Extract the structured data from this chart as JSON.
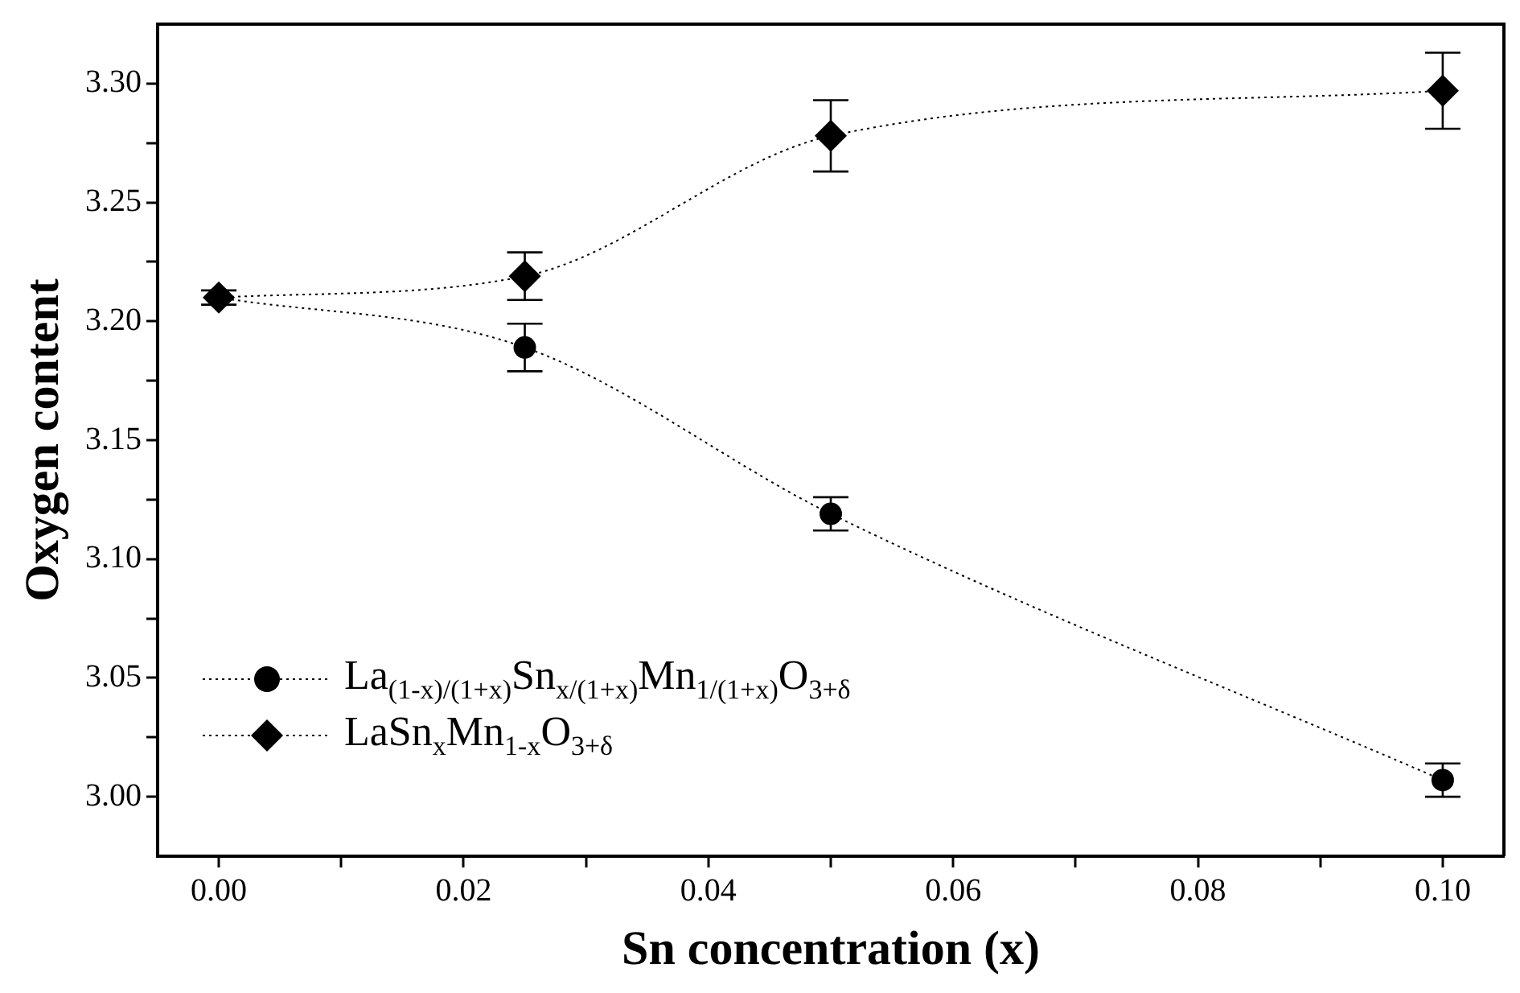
{
  "chart_data": {
    "type": "line",
    "xlabel": "Sn concentration (x)",
    "ylabel": "Oxygen content",
    "xlim": [
      -0.005,
      0.105
    ],
    "ylim": [
      2.975,
      3.325
    ],
    "xticks": [
      {
        "value": 0,
        "label": "0.00"
      },
      {
        "value": 0.01,
        "label": null
      },
      {
        "value": 0.02,
        "label": "0.02"
      },
      {
        "value": 0.03,
        "label": null
      },
      {
        "value": 0.04,
        "label": "0.04"
      },
      {
        "value": 0.05,
        "label": null
      },
      {
        "value": 0.06,
        "label": "0.06"
      },
      {
        "value": 0.07,
        "label": null
      },
      {
        "value": 0.08,
        "label": "0.08"
      },
      {
        "value": 0.09,
        "label": null
      },
      {
        "value": 0.1,
        "label": "0.10"
      }
    ],
    "yticks": [
      {
        "value": 3.0,
        "label": "3.00"
      },
      {
        "value": 3.025,
        "label": null
      },
      {
        "value": 3.05,
        "label": "3.05"
      },
      {
        "value": 3.075,
        "label": null
      },
      {
        "value": 3.1,
        "label": "3.10"
      },
      {
        "value": 3.125,
        "label": null
      },
      {
        "value": 3.15,
        "label": "3.15"
      },
      {
        "value": 3.175,
        "label": null
      },
      {
        "value": 3.2,
        "label": "3.20"
      },
      {
        "value": 3.225,
        "label": null
      },
      {
        "value": 3.25,
        "label": "3.25"
      },
      {
        "value": 3.275,
        "label": null
      },
      {
        "value": 3.3,
        "label": "3.30"
      }
    ],
    "grid": false,
    "legend": "bottom left",
    "line_style": "dotted",
    "series": [
      {
        "name": "La$_{(1-x)/(1+x)}$Sn$_{x/(1+x)}$Mn$_{1/(1+x)}$O$_{3+δ}$",
        "color": "#000000",
        "marker": "circle",
        "x": [
          0,
          0.025,
          0.05,
          0.1
        ],
        "values": [
          3.21,
          3.189,
          3.119,
          3.007
        ],
        "errors": [
          null,
          0.01,
          0.007,
          0.007
        ]
      },
      {
        "name": "LaSn$_{x}$Mn$_{1-x}$O$_{3+δ}$",
        "color": "#000000",
        "marker": "diamond",
        "x": [
          0,
          0.025,
          0.05,
          0.1
        ],
        "values": [
          3.21,
          3.219,
          3.278,
          3.297
        ],
        "errors": [
          0.003,
          0.01,
          0.015,
          0.016
        ]
      }
    ]
  }
}
